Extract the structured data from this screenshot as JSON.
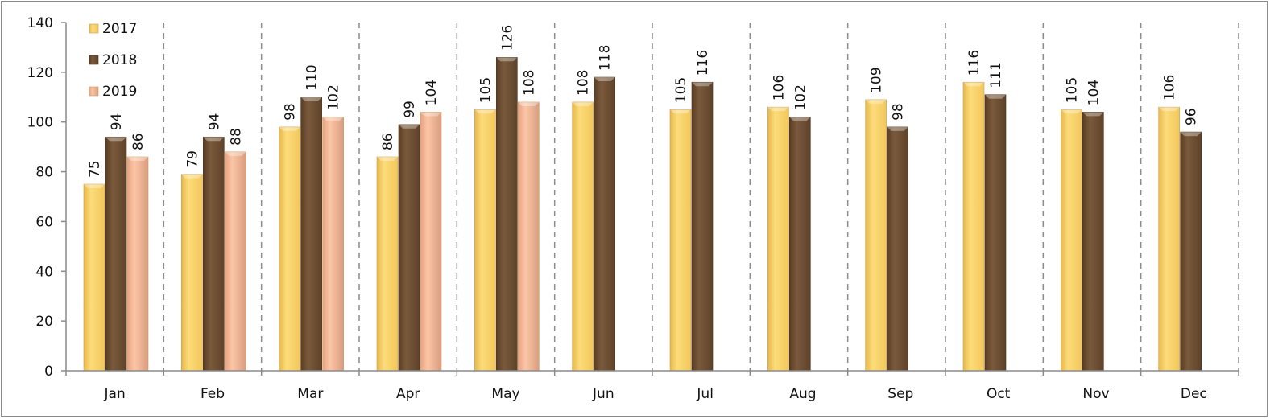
{
  "chart_data": {
    "type": "bar",
    "title": "",
    "xlabel": "",
    "ylabel": "",
    "ylim": [
      0,
      140
    ],
    "yticks": [
      0,
      20,
      40,
      60,
      80,
      100,
      120,
      140
    ],
    "grid": "vertical dashed separators between categories",
    "legend_position": "top-left",
    "categories": [
      "Jan",
      "Feb",
      "Mar",
      "Apr",
      "May",
      "Jun",
      "Jul",
      "Aug",
      "Sep",
      "Oct",
      "Nov",
      "Dec"
    ],
    "series": [
      {
        "name": "2017",
        "color": "#F7CF62",
        "values": [
          75,
          79,
          98,
          86,
          105,
          108,
          105,
          106,
          109,
          116,
          105,
          106
        ]
      },
      {
        "name": "2018",
        "color": "#6B4C30",
        "values": [
          94,
          94,
          110,
          99,
          126,
          118,
          116,
          102,
          98,
          111,
          104,
          96
        ]
      },
      {
        "name": "2019",
        "color": "#F4B594",
        "values": [
          86,
          88,
          102,
          104,
          108,
          null,
          null,
          null,
          null,
          null,
          null,
          null
        ]
      }
    ]
  }
}
